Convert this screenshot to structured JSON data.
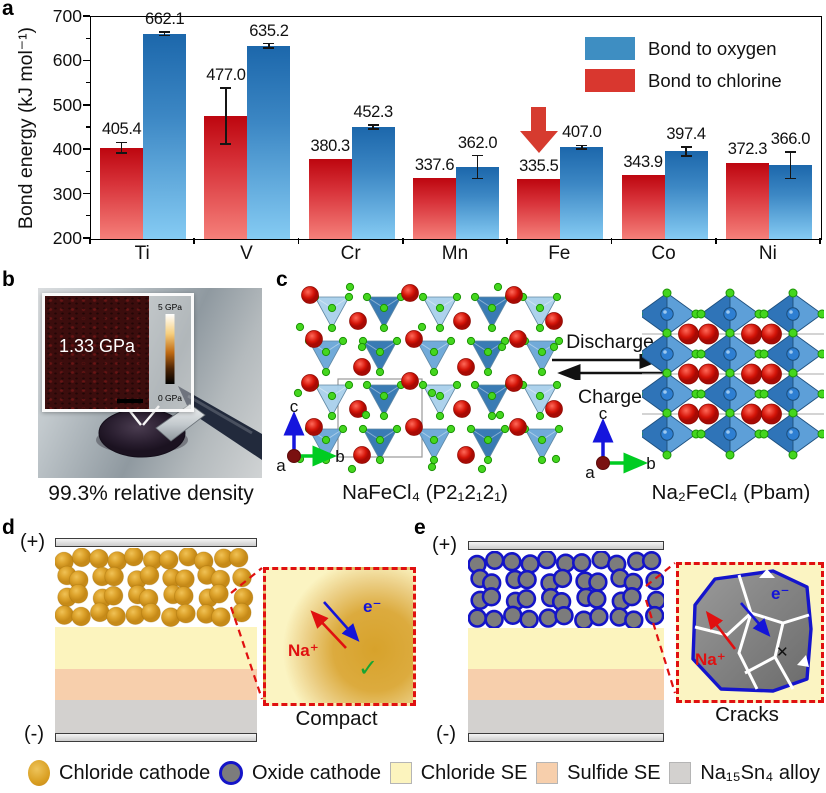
{
  "panels": {
    "a": "a",
    "b": "b",
    "c": "c",
    "d": "d",
    "e": "e"
  },
  "chart_data": {
    "type": "bar",
    "categories": [
      "Ti",
      "V",
      "Cr",
      "Mn",
      "Fe",
      "Co",
      "Ni"
    ],
    "series": [
      {
        "name": "Bond to chlorine",
        "color": "#d9372f",
        "values": [
          405.4,
          477.0,
          380.3,
          337.6,
          335.5,
          343.9,
          372.3
        ],
        "errors": [
          12,
          63,
          null,
          null,
          null,
          null,
          null
        ]
      },
      {
        "name": "Bond to oxygen",
        "color": "#3e8ec2",
        "values": [
          662.1,
          635.2,
          452.3,
          362.0,
          407.0,
          397.4,
          366.0
        ],
        "errors": [
          4,
          5,
          5,
          26,
          4,
          10,
          30
        ]
      }
    ],
    "ylabel": "Bond energy (kJ mol⁻¹)",
    "ylim": [
      200,
      700
    ],
    "yticks": [
      200,
      300,
      400,
      500,
      600,
      700
    ],
    "legend_order": [
      "Bond to oxygen",
      "Bond to chlorine"
    ],
    "legend_position": "top-right",
    "grid": false,
    "annotation": {
      "symbol": "down-arrow",
      "category": "Fe",
      "series": "Bond to chlorine",
      "color": "#d63b2f"
    }
  },
  "panel_b": {
    "inset_value": "1.33 GPa",
    "colorbar_max": "5 GPa",
    "colorbar_min": "0 GPa",
    "caption": "99.3% relative density"
  },
  "panel_c": {
    "left_caption": "NaFeCl₄ (P2₁2₁2₁)",
    "right_caption": "Na₂FeCl₄ (Pbam)",
    "forward_label": "Discharge",
    "reverse_label": "Charge",
    "axis_up": "c",
    "axis_right": "b",
    "axis_origin": "a"
  },
  "panel_d": {
    "positive": "(+)",
    "negative": "(-)",
    "ion_label": "Na⁺",
    "electron_label": "e⁻",
    "status_mark": "✓",
    "caption": "Compact"
  },
  "panel_e": {
    "positive": "(+)",
    "negative": "(-)",
    "ion_label": "Na⁺",
    "electron_label": "e⁻",
    "status_mark": "✕",
    "caption": "Cracks"
  },
  "legend": {
    "items": [
      {
        "label": "Chloride cathode",
        "marker": "gold-circle"
      },
      {
        "label": "Oxide cathode",
        "marker": "blue-ring-circle"
      },
      {
        "label": "Chloride SE",
        "marker": "pale-yellow-square",
        "color": "#fcf4be"
      },
      {
        "label": "Sulfide SE",
        "marker": "peach-square",
        "color": "#f7cfac"
      },
      {
        "label": "Na₁₅Sn₄ alloy",
        "marker": "gray-square",
        "color": "#d3d1cf"
      }
    ]
  },
  "colors": {
    "bar_red_top": "#bd060f",
    "bar_red_bottom": "#f5807a",
    "bar_blue_top": "#1c67ab",
    "bar_blue_bottom": "#85cbf3",
    "annotation_arrow": "#d63b2f",
    "chloride_se": "#fcf4be",
    "sulfide_se": "#f7cfac",
    "alloy": "#d3d1cf"
  }
}
